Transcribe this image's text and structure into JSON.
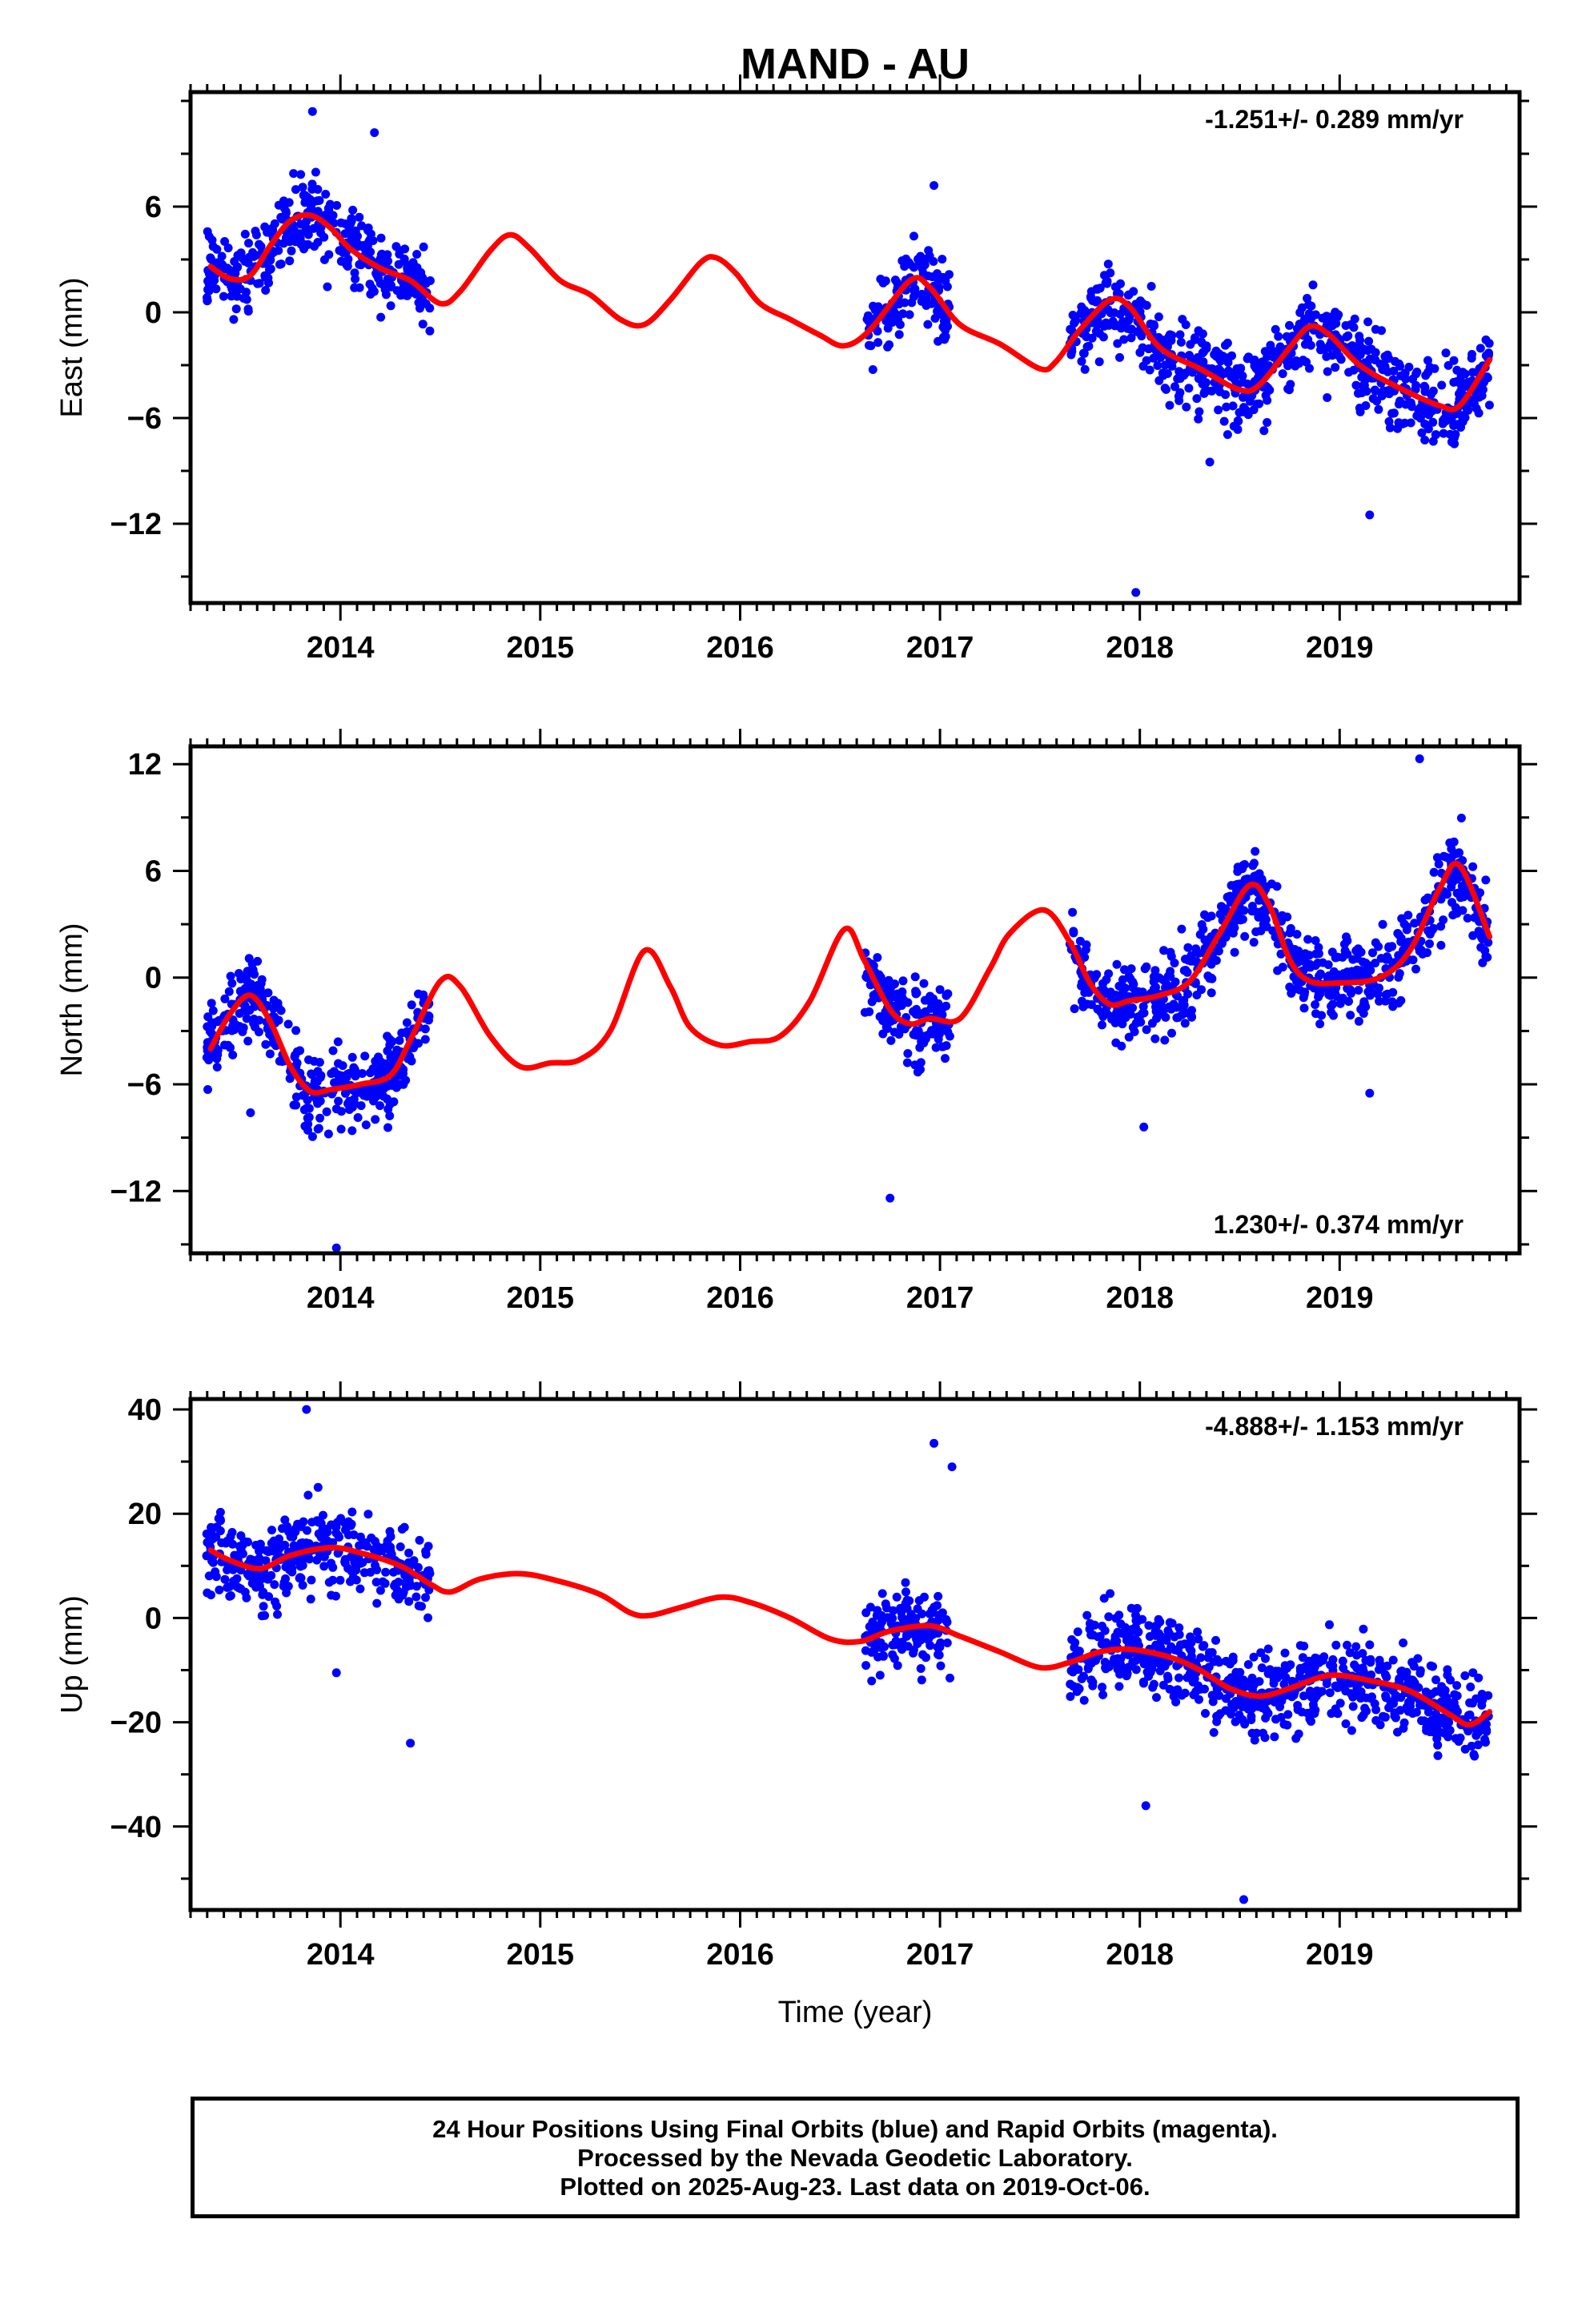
{
  "title": "MAND - AU",
  "footer": {
    "line1": "24 Hour Positions Using Final Orbits (blue) and Rapid Orbits (magenta).",
    "line2": "Processed by the Nevada Geodetic Laboratory.",
    "line3": "Plotted on 2025-Aug-23. Last data on 2019-Oct-06."
  },
  "colors": {
    "points": "#0000ff",
    "model": "#ff0000",
    "frame": "#000000"
  },
  "chart_data": [
    {
      "type": "scatter",
      "ylabel": "East (mm)",
      "xlabel": "",
      "rate": "-1.251+/- 0.289 mm/yr",
      "xlim": [
        2013.25,
        2019.9
      ],
      "ylim": [
        -16.5,
        12.5
      ],
      "xticks": [
        2014,
        2015,
        2016,
        2017,
        2018,
        2019
      ],
      "xtick_labels": [
        "2014",
        "2015",
        "2016",
        "2017",
        "2018",
        "2019"
      ],
      "yticks": [
        6,
        0,
        -6,
        -12
      ],
      "ytick_labels": [
        "6",
        "0",
        "−6",
        "−12"
      ],
      "data_spans": [
        [
          2013.33,
          2014.45
        ],
        [
          2016.62,
          2017.05
        ],
        [
          2017.65,
          2019.75
        ]
      ],
      "outliers": [
        [
          2013.86,
          11.4
        ],
        [
          2014.17,
          10.2
        ],
        [
          2016.97,
          7.2
        ],
        [
          2017.98,
          -15.9
        ],
        [
          2019.15,
          -11.5
        ],
        [
          2018.35,
          -8.5
        ]
      ],
      "trend": {
        "x": [
          2013.35,
          2013.45,
          2013.55,
          2013.65,
          2013.75,
          2013.85,
          2013.95,
          2014.05,
          2014.2,
          2014.35,
          2014.5,
          2014.6,
          2014.75,
          2014.85,
          2014.95,
          2015.1,
          2015.25,
          2015.4,
          2015.52,
          2015.65,
          2015.8,
          2015.88,
          2015.98,
          2016.1,
          2016.25,
          2016.4,
          2016.52,
          2016.65,
          2016.85,
          2016.95,
          2017.1,
          2017.3,
          2017.5,
          2017.58,
          2017.7,
          2017.85,
          2017.95,
          2018.1,
          2018.3,
          2018.5,
          2018.6,
          2018.75,
          2018.85,
          2018.95,
          2019.1,
          2019.3,
          2019.5,
          2019.6,
          2019.75
        ],
        "y": [
          2.6,
          1.9,
          2.1,
          3.8,
          5.2,
          5.5,
          4.8,
          3.6,
          2.5,
          1.8,
          0.5,
          1.2,
          3.5,
          4.4,
          3.6,
          1.8,
          1.0,
          -0.4,
          -0.7,
          0.7,
          2.8,
          3.1,
          2.2,
          0.5,
          -0.4,
          -1.3,
          -1.9,
          -1.0,
          1.8,
          1.4,
          -0.7,
          -1.8,
          -3.2,
          -2.8,
          -1.0,
          0.7,
          0.3,
          -2.0,
          -3.2,
          -4.4,
          -4.1,
          -2.0,
          -0.8,
          -1.3,
          -3.0,
          -4.3,
          -5.3,
          -5.3,
          -2.7
        ]
      }
    },
    {
      "type": "scatter",
      "ylabel": "North (mm)",
      "xlabel": "",
      "rate": "1.230+/- 0.374 mm/yr",
      "xlim": [
        2013.25,
        2019.9
      ],
      "ylim": [
        -15.5,
        13.0
      ],
      "xticks": [
        2014,
        2015,
        2016,
        2017,
        2018,
        2019
      ],
      "xtick_labels": [
        "2014",
        "2015",
        "2016",
        "2017",
        "2018",
        "2019"
      ],
      "yticks": [
        12,
        6,
        0,
        -6,
        -12
      ],
      "ytick_labels": [
        "12",
        "6",
        "0",
        "−6",
        "−12"
      ],
      "data_spans": [
        [
          2013.33,
          2014.45
        ],
        [
          2016.62,
          2017.05
        ],
        [
          2017.65,
          2019.75
        ]
      ],
      "outliers": [
        [
          2013.98,
          -15.2
        ],
        [
          2016.75,
          -12.4
        ],
        [
          2018.02,
          -8.4
        ],
        [
          2019.4,
          12.3
        ],
        [
          2019.15,
          -6.5
        ],
        [
          2013.55,
          -7.6
        ]
      ],
      "trend": {
        "x": [
          2013.35,
          2013.45,
          2013.55,
          2013.65,
          2013.75,
          2013.85,
          2013.95,
          2014.1,
          2014.25,
          2014.35,
          2014.5,
          2014.6,
          2014.75,
          2014.9,
          2015.05,
          2015.2,
          2015.35,
          2015.52,
          2015.65,
          2015.75,
          2015.9,
          2016.05,
          2016.2,
          2016.35,
          2016.52,
          2016.62,
          2016.75,
          2016.85,
          2016.95,
          2017.1,
          2017.25,
          2017.35,
          2017.52,
          2017.65,
          2017.75,
          2017.85,
          2017.95,
          2018.1,
          2018.25,
          2018.4,
          2018.55,
          2018.65,
          2018.75,
          2018.85,
          2019.0,
          2019.2,
          2019.35,
          2019.5,
          2019.6,
          2019.75
        ],
        "y": [
          -4.0,
          -2.0,
          -1.0,
          -2.5,
          -5.0,
          -6.4,
          -6.3,
          -6.0,
          -5.5,
          -3.5,
          -0.2,
          -0.5,
          -3.3,
          -5.0,
          -4.8,
          -4.6,
          -3.0,
          1.5,
          -0.5,
          -2.8,
          -3.8,
          -3.6,
          -3.3,
          -1.3,
          2.7,
          1.0,
          -1.8,
          -2.6,
          -2.3,
          -2.3,
          0.5,
          2.5,
          3.8,
          2.0,
          -0.3,
          -1.5,
          -1.3,
          -1.0,
          -0.2,
          2.5,
          5.2,
          4.0,
          1.0,
          -0.2,
          -0.3,
          0.0,
          1.5,
          5.0,
          6.3,
          2.3
        ]
      }
    },
    {
      "type": "scatter",
      "ylabel": "Up (mm)",
      "xlabel": "Time (year)",
      "rate": "-4.888+/- 1.153 mm/yr",
      "xlim": [
        2013.25,
        2019.9
      ],
      "ylim": [
        -56,
        42
      ],
      "xticks": [
        2014,
        2015,
        2016,
        2017,
        2018,
        2019
      ],
      "xtick_labels": [
        "2014",
        "2015",
        "2016",
        "2017",
        "2018",
        "2019"
      ],
      "yticks": [
        40,
        20,
        0,
        -20,
        -40
      ],
      "ytick_labels": [
        "40",
        "20",
        "0",
        "−20",
        "−40"
      ],
      "data_spans": [
        [
          2013.33,
          2014.45
        ],
        [
          2016.62,
          2017.05
        ],
        [
          2017.65,
          2019.75
        ]
      ],
      "outliers": [
        [
          2013.83,
          40.0
        ],
        [
          2016.97,
          33.5
        ],
        [
          2017.06,
          29.0
        ],
        [
          2014.35,
          -24.0
        ],
        [
          2018.03,
          -36.0
        ],
        [
          2018.52,
          -54.0
        ],
        [
          2013.98,
          -10.5
        ]
      ],
      "trend": {
        "x": [
          2013.35,
          2013.45,
          2013.6,
          2013.75,
          2013.95,
          2014.1,
          2014.3,
          2014.45,
          2014.55,
          2014.7,
          2014.9,
          2015.1,
          2015.3,
          2015.45,
          2015.55,
          2015.7,
          2015.9,
          2016.05,
          2016.25,
          2016.45,
          2016.6,
          2016.75,
          2016.95,
          2017.1,
          2017.3,
          2017.5,
          2017.65,
          2017.8,
          2017.95,
          2018.15,
          2018.3,
          2018.45,
          2018.6,
          2018.75,
          2018.95,
          2019.15,
          2019.35,
          2019.55,
          2019.65,
          2019.75
        ],
        "y": [
          13,
          11,
          9.5,
          12,
          13.5,
          12.5,
          10,
          6.5,
          5,
          7.5,
          8.5,
          7,
          4.5,
          1,
          0.5,
          2,
          4,
          3,
          0,
          -4,
          -4.5,
          -2.5,
          -1.5,
          -3.5,
          -6.5,
          -9.5,
          -8.5,
          -6.5,
          -6,
          -7.5,
          -10,
          -13.5,
          -15,
          -13.5,
          -11,
          -12,
          -14,
          -18.5,
          -20.5,
          -18
        ]
      }
    }
  ]
}
